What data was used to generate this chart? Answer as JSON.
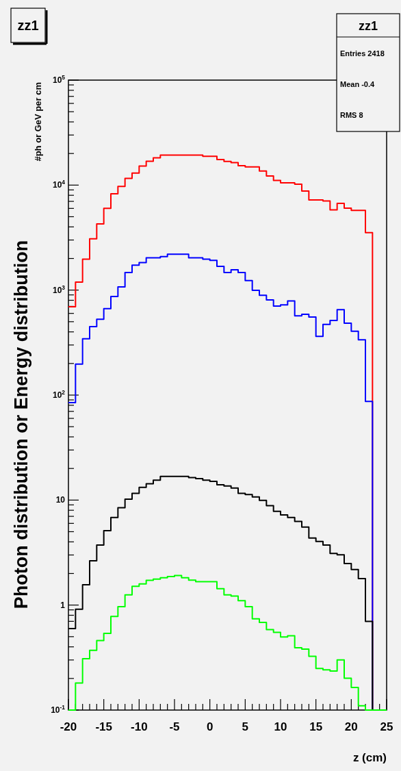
{
  "chart_data": {
    "type": "histogram",
    "title": "zz1",
    "xlabel": "z (cm)",
    "ylabel": "#ph or GeV per cm",
    "annotations": [
      "zz1",
      "Entries 2418",
      "Mean -0.4",
      "RMS 8",
      "Photon distribution or Energy distribution"
    ],
    "bins": [
      -20,
      -19,
      -18,
      -17,
      -16,
      -15,
      -14,
      -13,
      -12,
      -11,
      -10,
      -9,
      -8,
      -7,
      -6,
      -5,
      -4,
      -3,
      -2,
      -1,
      0,
      1,
      2,
      3,
      4,
      5,
      6,
      7,
      8,
      9,
      10,
      11,
      12,
      13,
      14,
      15,
      16,
      17,
      18,
      19,
      20,
      21,
      22,
      23,
      24,
      25
    ],
    "series": [
      {
        "color": "#ff0000",
        "values": [
          693,
          1191,
          1968,
          3084,
          4276,
          5998,
          8280,
          9700,
          11600,
          13000,
          15200,
          16900,
          18200,
          19300,
          19300,
          19300,
          19300,
          19300,
          19300,
          18800,
          18800,
          17500,
          16800,
          16400,
          15300,
          14900,
          14900,
          13600,
          12200,
          11060,
          10500,
          10500,
          10200,
          8790,
          7230,
          7230,
          7050,
          5820,
          6700,
          6040,
          5740,
          5740,
          3530,
          0.1,
          0.1
        ]
      },
      {
        "color": "#0000ff",
        "values": [
          84.8,
          197,
          344,
          449,
          527,
          667,
          869,
          1073,
          1472,
          1727,
          1825,
          2027,
          2027,
          2088,
          2196,
          2196,
          2196,
          2027,
          2027,
          1968,
          1917,
          1682,
          1472,
          1563,
          1472,
          1233,
          995,
          891,
          807,
          705,
          722,
          787,
          568,
          589,
          554,
          362,
          472,
          514,
          650,
          484,
          405,
          336,
          86.9,
          0.1,
          0.1
        ]
      },
      {
        "color": "#000000",
        "values": [
          0.597,
          0.912,
          1.56,
          2.64,
          3.73,
          5.11,
          6.82,
          8.46,
          10.2,
          11.6,
          13.2,
          14.3,
          15.5,
          16.8,
          16.8,
          16.8,
          16.8,
          16.4,
          16.0,
          15.5,
          15.1,
          14.0,
          13.6,
          13.0,
          11.6,
          11.3,
          10.7,
          9.94,
          8.85,
          7.82,
          7.21,
          6.82,
          6.27,
          5.53,
          4.35,
          4.03,
          3.73,
          3.1,
          3.01,
          2.49,
          2.18,
          1.79,
          0.7,
          0.1,
          0.1
        ]
      },
      {
        "color": "#00ff00",
        "values": [
          0.1,
          0.181,
          0.308,
          0.371,
          0.459,
          0.537,
          0.781,
          0.964,
          1.25,
          1.51,
          1.59,
          1.72,
          1.77,
          1.82,
          1.87,
          1.91,
          1.82,
          1.73,
          1.67,
          1.67,
          1.67,
          1.43,
          1.25,
          1.22,
          1.1,
          0.964,
          0.74,
          0.683,
          0.584,
          0.549,
          0.497,
          0.51,
          0.392,
          0.38,
          0.325,
          0.249,
          0.242,
          0.235,
          0.3,
          0.201,
          0.164,
          0.11,
          0.1,
          0.1,
          0.1
        ]
      }
    ],
    "log": "y",
    "grid": false,
    "xlim": [
      -20,
      25
    ],
    "xticks": [
      -20,
      {
        "value": -19,
        "label": null
      },
      {
        "value": -18,
        "label": null
      },
      {
        "value": -17,
        "label": null
      },
      {
        "value": -16,
        "label": null
      },
      -15,
      {
        "value": -14,
        "label": null
      },
      {
        "value": -13,
        "label": null
      },
      {
        "value": -12,
        "label": null
      },
      {
        "value": -11,
        "label": null
      },
      -10,
      {
        "value": -9,
        "label": null
      },
      {
        "value": -8,
        "label": null
      },
      {
        "value": -7,
        "label": null
      },
      {
        "value": -6,
        "label": null
      },
      -5,
      {
        "value": -4,
        "label": null
      },
      {
        "value": -3,
        "label": null
      },
      {
        "value": -2,
        "label": null
      },
      {
        "value": -1,
        "label": null
      },
      0,
      {
        "value": 1,
        "label": null
      },
      {
        "value": 2,
        "label": null
      },
      {
        "value": 3,
        "label": null
      },
      {
        "value": 4,
        "label": null
      },
      5,
      {
        "value": 6,
        "label": null
      },
      {
        "value": 7,
        "label": null
      },
      {
        "value": 8,
        "label": null
      },
      {
        "value": 9,
        "label": null
      },
      10,
      {
        "value": 11,
        "label": null
      },
      {
        "value": 12,
        "label": null
      },
      {
        "value": 13,
        "label": null
      },
      {
        "value": 14,
        "label": null
      },
      15,
      {
        "value": 16,
        "label": null
      },
      {
        "value": 17,
        "label": null
      },
      {
        "value": 18,
        "label": null
      },
      {
        "value": 19,
        "label": null
      },
      20,
      {
        "value": 21,
        "label": null
      },
      {
        "value": 22,
        "label": null
      },
      {
        "value": 23,
        "label": null
      },
      {
        "value": 24,
        "label": null
      },
      25
    ],
    "ylim": [
      0.1,
      100000
    ],
    "yticks": [
      {
        "value": 0.1,
        "label": "10$^{-1}$"
      },
      {
        "value": 0.2,
        "label": null
      },
      {
        "value": 0.3,
        "label": null
      },
      {
        "value": 0.4,
        "label": null
      },
      {
        "value": 0.5,
        "label": null
      },
      {
        "value": 0.6,
        "label": null
      },
      {
        "value": 0.7,
        "label": null
      },
      {
        "value": 0.8,
        "label": null
      },
      {
        "value": 0.9,
        "label": null
      },
      1,
      {
        "value": 2,
        "label": null
      },
      {
        "value": 3,
        "label": null
      },
      {
        "value": 4,
        "label": null
      },
      {
        "value": 5,
        "label": null
      },
      {
        "value": 6,
        "label": null
      },
      {
        "value": 7,
        "label": null
      },
      {
        "value": 8,
        "label": null
      },
      {
        "value": 9,
        "label": null
      },
      10,
      {
        "value": 20,
        "label": null
      },
      {
        "value": 30,
        "label": null
      },
      {
        "value": 40,
        "label": null
      },
      {
        "value": 50,
        "label": null
      },
      {
        "value": 60,
        "label": null
      },
      {
        "value": 70,
        "label": null
      },
      {
        "value": 80,
        "label": null
      },
      {
        "value": 90,
        "label": null
      },
      {
        "value": 100,
        "label": "10$^{2}$"
      },
      {
        "value": 200,
        "label": null
      },
      {
        "value": 300,
        "label": null
      },
      {
        "value": 400,
        "label": null
      },
      {
        "value": 500,
        "label": null
      },
      {
        "value": 600,
        "label": null
      },
      {
        "value": 700,
        "label": null
      },
      {
        "value": 800,
        "label": null
      },
      {
        "value": 900,
        "label": null
      },
      {
        "value": 1000,
        "label": "10$^{3}$"
      },
      {
        "value": 2000,
        "label": null
      },
      {
        "value": 3000,
        "label": null
      },
      {
        "value": 4000,
        "label": null
      },
      {
        "value": 5000,
        "label": null
      },
      {
        "value": 6000,
        "label": null
      },
      {
        "value": 7000,
        "label": null
      },
      {
        "value": 8000,
        "label": null
      },
      {
        "value": 9000,
        "label": null
      },
      {
        "value": 10000,
        "label": "10$^{4}$"
      },
      {
        "value": 20000,
        "label": null
      },
      {
        "value": 30000,
        "label": null
      },
      {
        "value": 40000,
        "label": null
      },
      {
        "value": 50000,
        "label": null
      },
      {
        "value": 60000,
        "label": null
      },
      {
        "value": 70000,
        "label": null
      },
      {
        "value": 80000,
        "label": null
      },
      {
        "value": 90000,
        "label": null
      },
      {
        "value": 100000,
        "label": "10$^{5}$"
      }
    ]
  }
}
